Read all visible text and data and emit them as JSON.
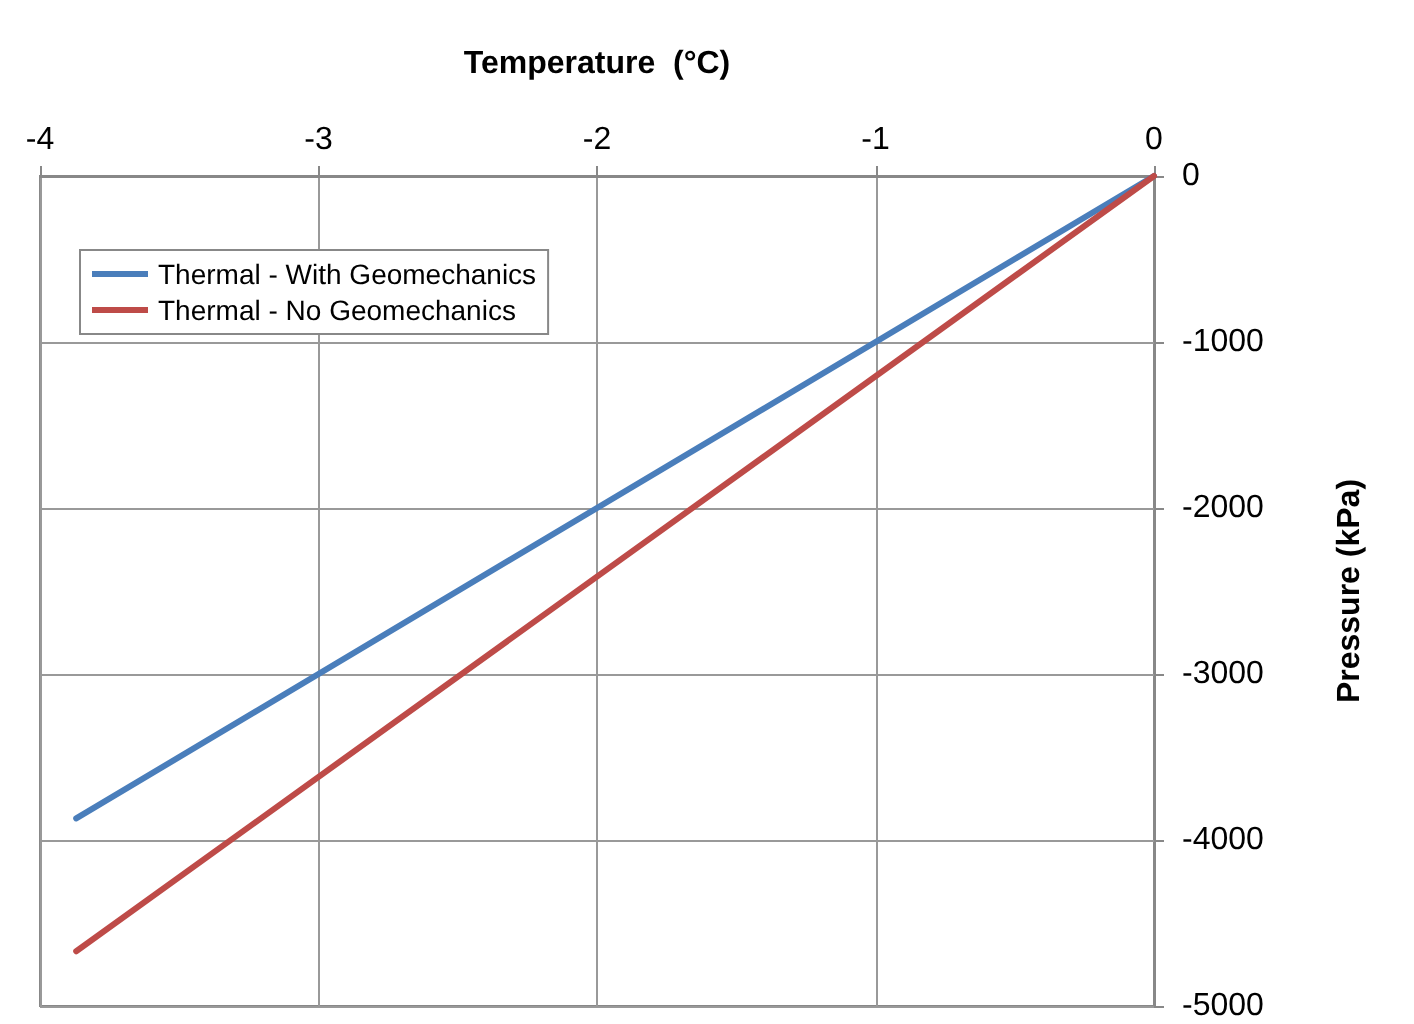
{
  "chart_data": {
    "type": "line",
    "xlabel": "Temperature  (°C)",
    "ylabel": "Pressure (kPa)",
    "xlim": [
      -4,
      0
    ],
    "xticks": [
      -4,
      -3,
      -2,
      -1,
      0
    ],
    "ylim": [
      -5000,
      0
    ],
    "yticks": [
      -5000,
      -4000,
      -3000,
      -2000,
      -1000,
      0
    ],
    "grid": true,
    "legend": "top left",
    "marker": "none",
    "line_style": "solid",
    "x": [
      -3.87,
      0
    ],
    "series": [
      {
        "name": "Thermal - With Geomechanics",
        "color": "#4a7ebb",
        "values": [
          -3870,
          0
        ]
      },
      {
        "name": "Thermal - No Geomechanics",
        "color": "#be4b48",
        "values": [
          -4670,
          0
        ]
      }
    ]
  }
}
